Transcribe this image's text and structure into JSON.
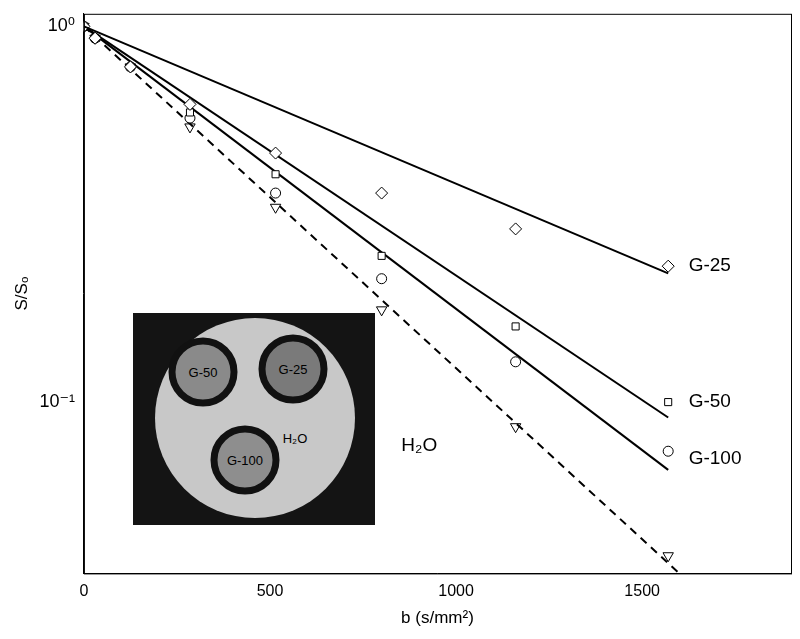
{
  "chart_data": {
    "type": "scatter",
    "x_label": "b (s/mm²)",
    "y_label": "S/Sₒ",
    "x": [
      0,
      30,
      125,
      285,
      515,
      800,
      1160,
      1570
    ],
    "series": [
      {
        "name": "G-25",
        "marker": "diamond",
        "line_style": "solid",
        "values": [
          1.0,
          0.93,
          0.78,
          0.62,
          0.46,
          0.36,
          0.289,
          0.23
        ],
        "fit_x": [
          0,
          1570
        ],
        "fit": [
          1.0,
          0.22
        ]
      },
      {
        "name": "G-50",
        "marker": "square",
        "line_style": "solid",
        "values": [
          1.0,
          0.93,
          0.78,
          0.59,
          0.404,
          0.245,
          0.159,
          0.1
        ],
        "fit_x": [
          0,
          1570
        ],
        "fit": [
          1.0,
          0.091
        ]
      },
      {
        "name": "G-100",
        "marker": "circle",
        "line_style": "solid",
        "values": [
          1.0,
          0.93,
          0.78,
          0.57,
          0.36,
          0.213,
          0.128,
          0.074
        ],
        "fit_x": [
          0,
          1570
        ],
        "fit": [
          1.0,
          0.066
        ]
      },
      {
        "name": "H₂O",
        "marker": "triangle-down",
        "line_style": "dashed",
        "values": [
          1.0,
          0.93,
          0.78,
          0.54,
          0.33,
          0.176,
          0.086,
          0.039
        ],
        "fit_x": [
          0,
          1600
        ],
        "fit": [
          1.0,
          0.035
        ]
      }
    ],
    "annotations": [
      {
        "text": "G-25",
        "x": 1625,
        "y": 0.23
      },
      {
        "text": "G-50",
        "x": 1625,
        "y": 0.1
      },
      {
        "text": "G-100",
        "x": 1625,
        "y": 0.0706
      },
      {
        "text": "H₂O",
        "x": 853,
        "y": 0.0766
      }
    ],
    "xlim": [
      0,
      1900
    ],
    "xticks": [
      0,
      500,
      1000,
      1500
    ],
    "ylim": [
      0.035,
      1.08
    ],
    "yticks": [
      {
        "value": 0.1,
        "label": "10⁻¹"
      },
      {
        "value": 1,
        "label": "10⁰"
      }
    ],
    "log": "y",
    "grid": false,
    "color": "#000000"
  }
}
